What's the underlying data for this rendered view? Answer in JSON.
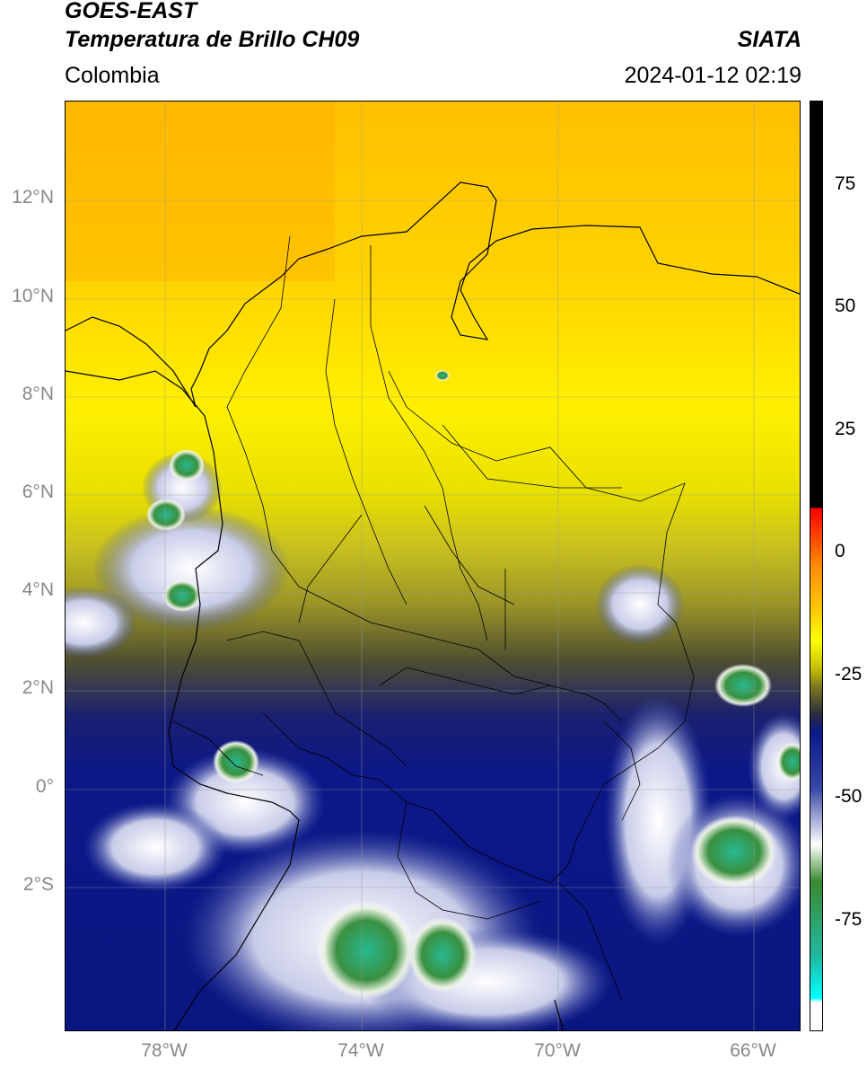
{
  "header": {
    "title_line1": "GOES-EAST",
    "title_line2": "Temperatura de Brillo CH09",
    "brand": "SIATA",
    "region": "Colombia",
    "timestamp": "2024-01-12 02:19"
  },
  "map": {
    "lat_ticks": [
      "12°N",
      "10°N",
      "8°N",
      "6°N",
      "4°N",
      "2°N",
      "0°",
      "2°S"
    ],
    "lon_ticks": [
      "78°W",
      "74°W",
      "70°W",
      "66°W"
    ],
    "lat_values": [
      12,
      10,
      8,
      6,
      4,
      2,
      0,
      -2
    ],
    "lon_values": [
      -78,
      -74,
      -70,
      -66
    ],
    "lon_range": [
      -80,
      -65
    ],
    "lat_range": [
      -5,
      14
    ],
    "grid": true
  },
  "colorbar": {
    "ticks": [
      "75",
      "50",
      "25",
      "0",
      "-25",
      "-50",
      "-75"
    ],
    "tick_values": [
      75,
      50,
      25,
      0,
      -25,
      -50,
      -75
    ],
    "range": [
      -100,
      90
    ],
    "colors": {
      "black": "#000000",
      "red": "#ff0000",
      "orange": "#ff8c00",
      "yellow": "#ffff00",
      "olive": "#7a7a20",
      "navy": "#0a1a8a",
      "white": "#ffffff",
      "green": "#3a8a30",
      "teal": "#20b8a0",
      "cyan": "#00ffff"
    }
  }
}
